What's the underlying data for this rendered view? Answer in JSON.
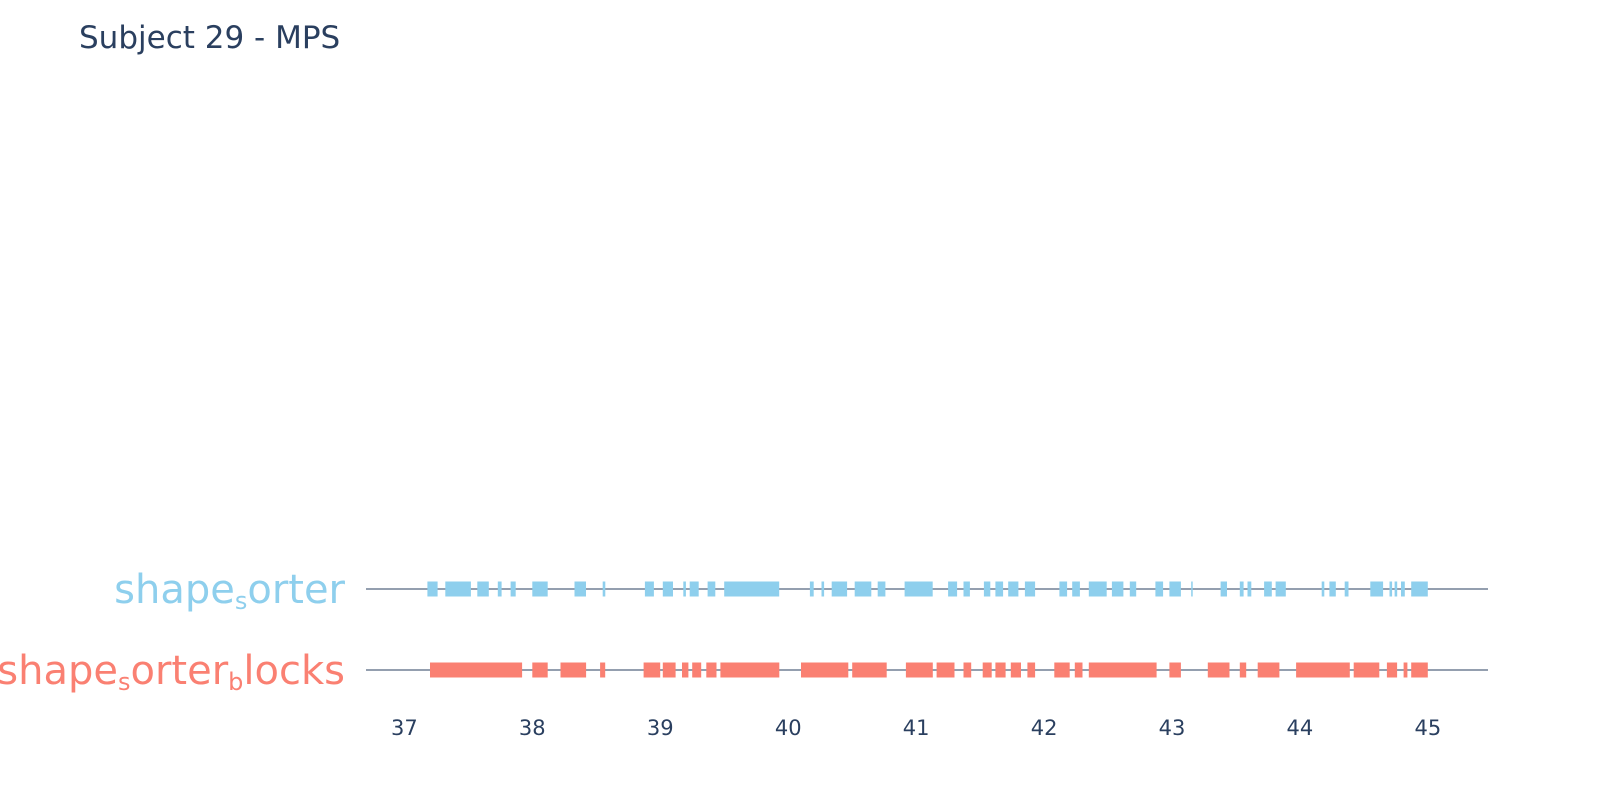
{
  "chart_data": {
    "type": "event_raster",
    "title": "Subject 29 - MPS",
    "xlim": [
      36.7,
      45.47
    ],
    "x_ticks": [
      "37",
      "38",
      "39",
      "40",
      "41",
      "42",
      "43",
      "44",
      "45"
    ],
    "x_tick_values": [
      37,
      38,
      39,
      40,
      41,
      42,
      43,
      44,
      45
    ],
    "rows": [
      {
        "key": "shape_sorter",
        "label_parts": [
          {
            "t": "shape",
            "sub": false
          },
          {
            "t": "s",
            "sub": true
          },
          {
            "t": "orter",
            "sub": false
          }
        ],
        "color": "#8ecfed",
        "segments": [
          [
            37.18,
            37.26
          ],
          [
            37.32,
            37.52
          ],
          [
            37.57,
            37.66
          ],
          [
            37.73,
            37.76
          ],
          [
            37.83,
            37.87
          ],
          [
            38.0,
            38.12
          ],
          [
            38.33,
            38.42
          ],
          [
            38.55,
            38.57
          ],
          [
            38.88,
            38.95
          ],
          [
            39.02,
            39.1
          ],
          [
            39.18,
            39.2
          ],
          [
            39.23,
            39.3
          ],
          [
            39.37,
            39.43
          ],
          [
            39.5,
            39.93
          ],
          [
            40.17,
            40.2
          ],
          [
            40.26,
            40.28
          ],
          [
            40.34,
            40.46
          ],
          [
            40.52,
            40.65
          ],
          [
            40.7,
            40.76
          ],
          [
            40.91,
            41.13
          ],
          [
            41.25,
            41.32
          ],
          [
            41.37,
            41.42
          ],
          [
            41.53,
            41.58
          ],
          [
            41.62,
            41.68
          ],
          [
            41.72,
            41.8
          ],
          [
            41.85,
            41.93
          ],
          [
            42.12,
            42.18
          ],
          [
            42.22,
            42.28
          ],
          [
            42.35,
            42.49
          ],
          [
            42.53,
            42.62
          ],
          [
            42.67,
            42.72
          ],
          [
            42.87,
            42.93
          ],
          [
            42.98,
            43.07
          ],
          [
            43.15,
            43.16
          ],
          [
            43.38,
            43.43
          ],
          [
            43.53,
            43.56
          ],
          [
            43.59,
            43.62
          ],
          [
            43.72,
            43.78
          ],
          [
            43.81,
            43.89
          ],
          [
            44.17,
            44.19
          ],
          [
            44.23,
            44.28
          ],
          [
            44.35,
            44.38
          ],
          [
            44.55,
            44.65
          ],
          [
            44.7,
            44.72
          ],
          [
            44.74,
            44.76
          ],
          [
            44.79,
            44.82
          ],
          [
            44.87,
            45.0
          ]
        ]
      },
      {
        "key": "shape_sorter_blocks",
        "label_parts": [
          {
            "t": "shape",
            "sub": false
          },
          {
            "t": "s",
            "sub": true
          },
          {
            "t": "orter",
            "sub": false
          },
          {
            "t": "b",
            "sub": true
          },
          {
            "t": "locks",
            "sub": false
          }
        ],
        "color": "#fa8072",
        "segments": [
          [
            37.2,
            37.92
          ],
          [
            38.0,
            38.12
          ],
          [
            38.22,
            38.42
          ],
          [
            38.53,
            38.57
          ],
          [
            38.87,
            39.0
          ],
          [
            39.02,
            39.12
          ],
          [
            39.17,
            39.22
          ],
          [
            39.25,
            39.32
          ],
          [
            39.36,
            39.44
          ],
          [
            39.47,
            39.93
          ],
          [
            40.1,
            40.47
          ],
          [
            40.5,
            40.77
          ],
          [
            40.92,
            41.13
          ],
          [
            41.16,
            41.3
          ],
          [
            41.37,
            41.43
          ],
          [
            41.52,
            41.59
          ],
          [
            41.62,
            41.7
          ],
          [
            41.74,
            41.82
          ],
          [
            41.87,
            41.93
          ],
          [
            42.08,
            42.2
          ],
          [
            42.24,
            42.3
          ],
          [
            42.35,
            42.88
          ],
          [
            42.98,
            43.07
          ],
          [
            43.28,
            43.45
          ],
          [
            43.53,
            43.58
          ],
          [
            43.67,
            43.84
          ],
          [
            43.97,
            44.39
          ],
          [
            44.42,
            44.62
          ],
          [
            44.68,
            44.76
          ],
          [
            44.81,
            44.84
          ],
          [
            44.87,
            45.0
          ]
        ]
      }
    ]
  }
}
